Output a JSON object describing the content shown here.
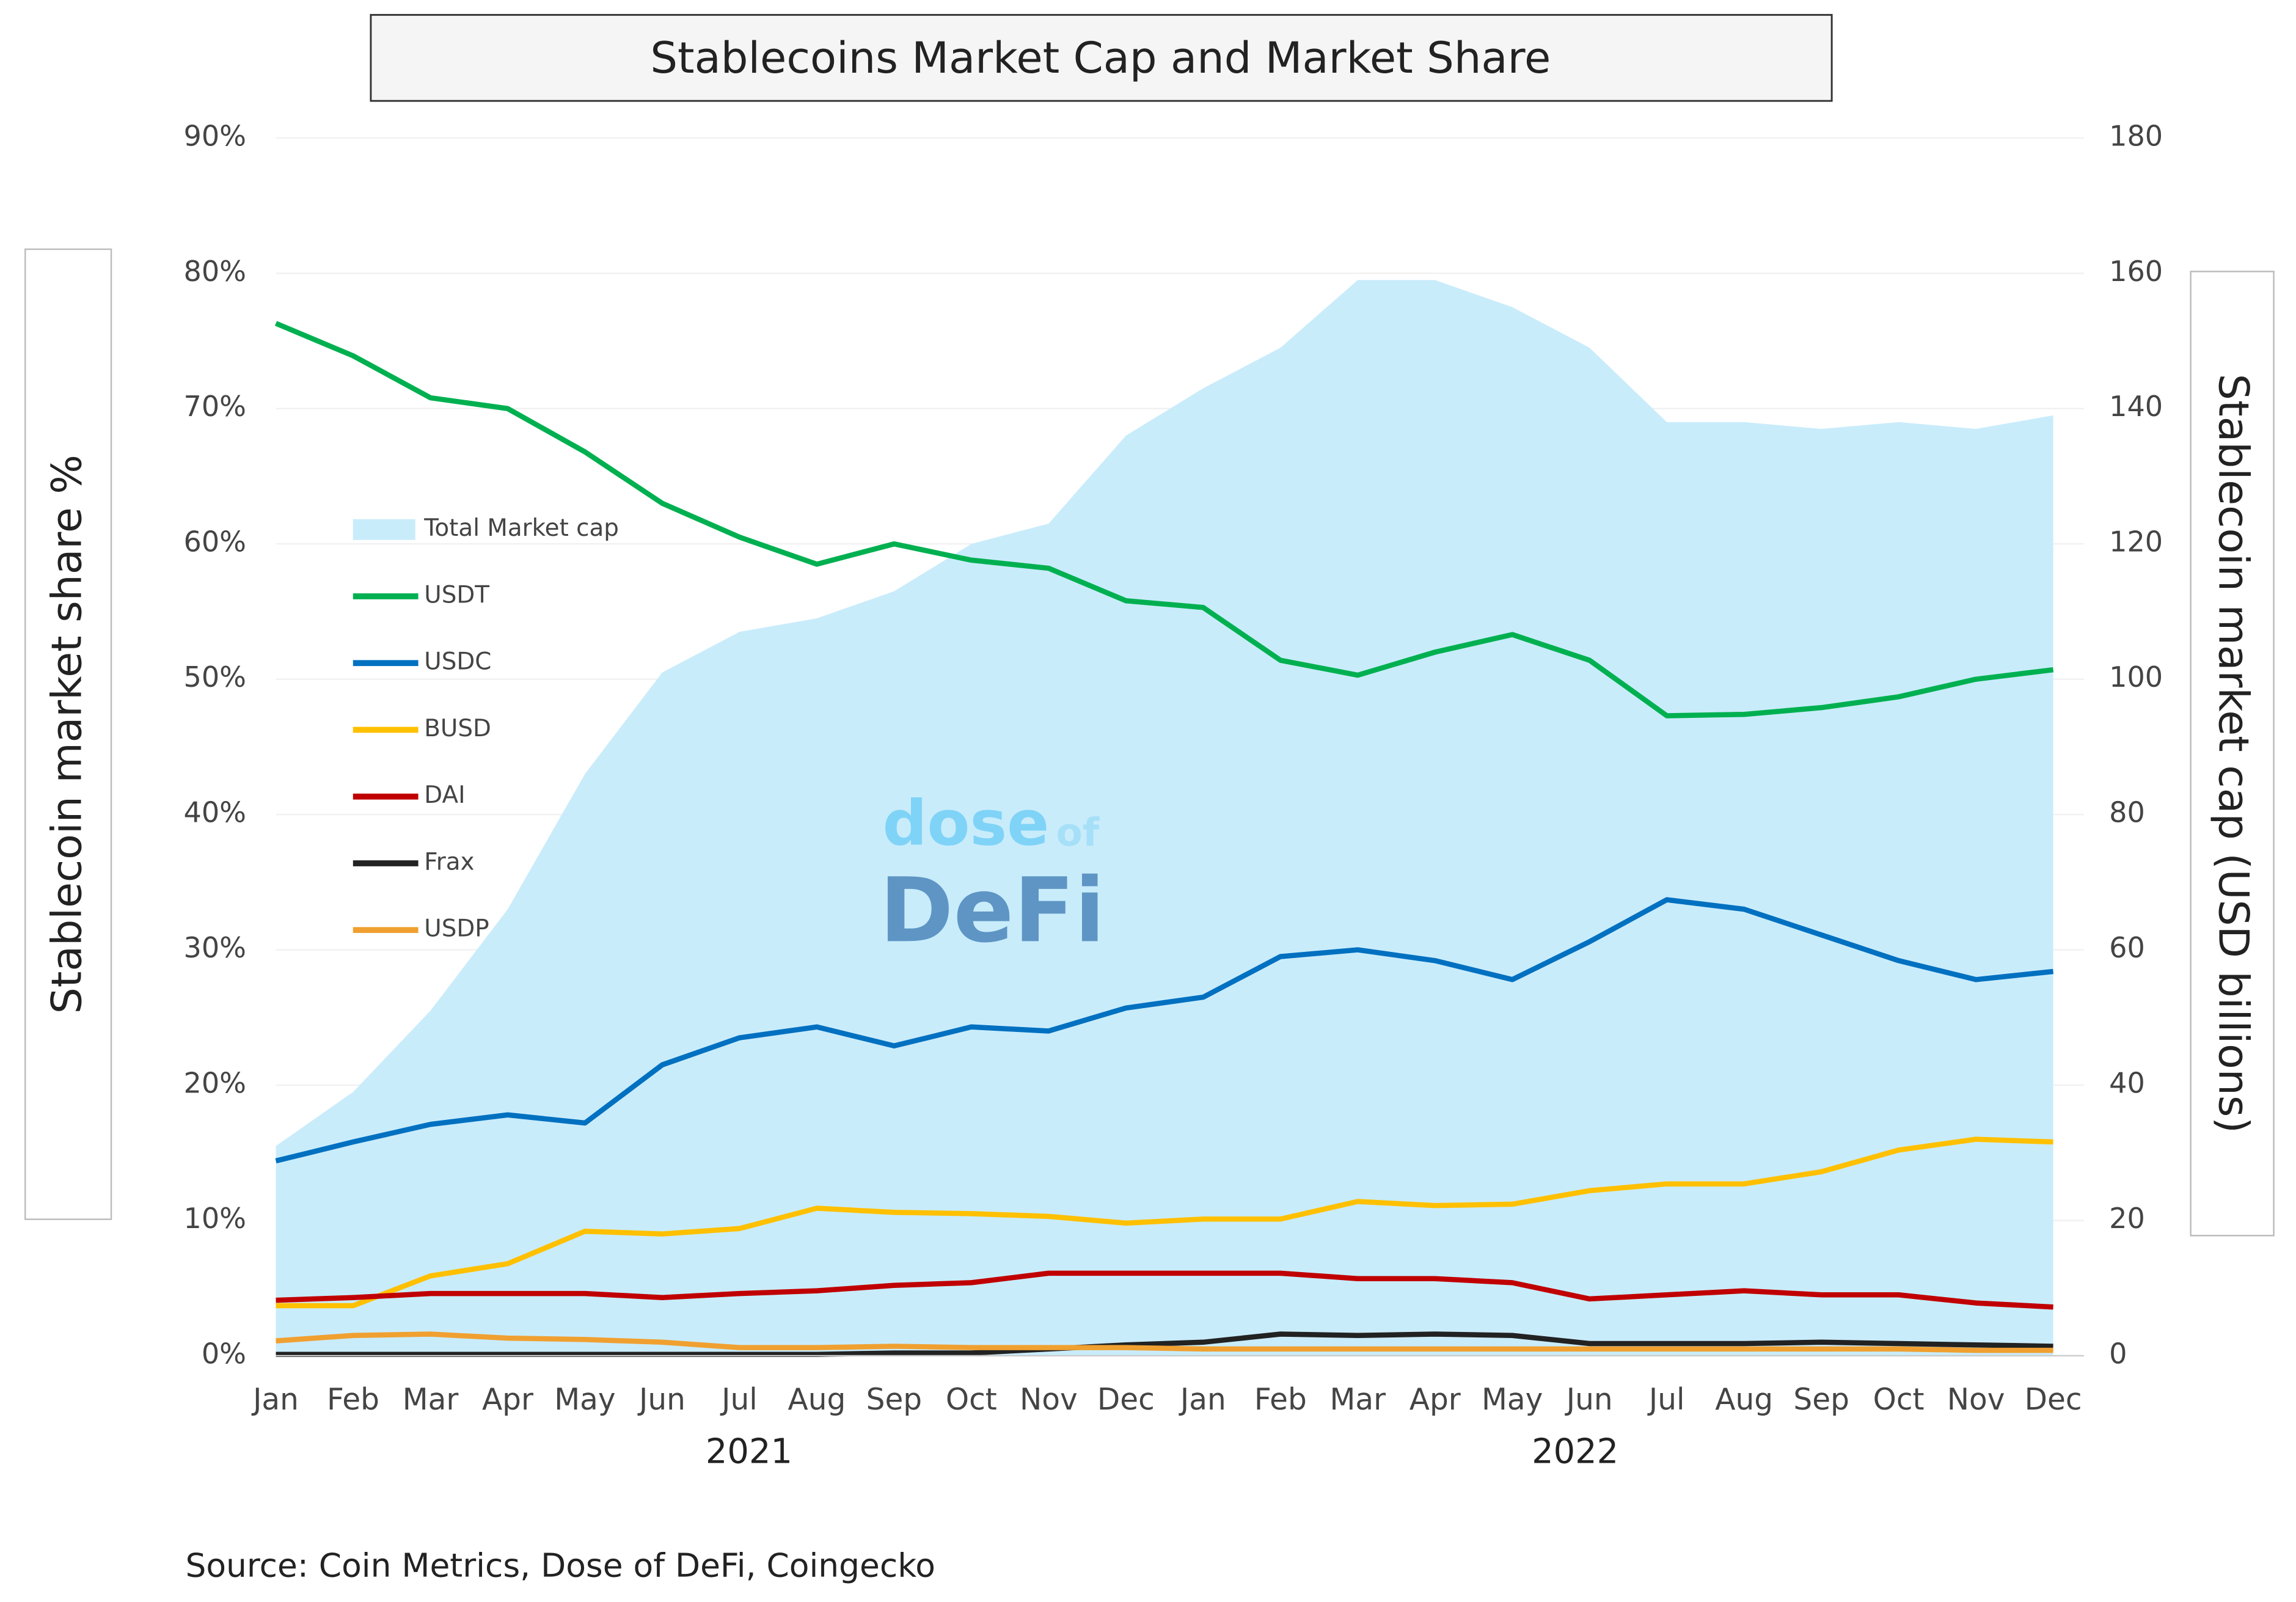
{
  "chart_data": {
    "type": "line",
    "title": "Stablecoins Market Cap and Market Share",
    "ylabel": "Stablecoin market share %",
    "y2label": "Stablecoin market cap (USD billions)",
    "source": "Source: Coin Metrics, Dose of DeFi, Coingecko",
    "watermark": [
      "dose",
      "of",
      "DeFi"
    ],
    "categories": [
      "Jan",
      "Feb",
      "Mar",
      "Apr",
      "May",
      "Jun",
      "Jul",
      "Aug",
      "Sep",
      "Oct",
      "Nov",
      "Dec",
      "Jan",
      "Feb",
      "Mar",
      "Apr",
      "May",
      "Jun",
      "Jul",
      "Aug",
      "Sep",
      "Oct",
      "Nov",
      "Dec"
    ],
    "x_groups": [
      "2021",
      "2022"
    ],
    "ylim": [
      0,
      90
    ],
    "yticks": [
      {
        "value": 0,
        "label": "0%"
      },
      {
        "value": 10,
        "label": "10%"
      },
      {
        "value": 20,
        "label": "20%"
      },
      {
        "value": 30,
        "label": "30%"
      },
      {
        "value": 40,
        "label": "40%"
      },
      {
        "value": 50,
        "label": "50%"
      },
      {
        "value": 60,
        "label": "60%"
      },
      {
        "value": 70,
        "label": "70%"
      },
      {
        "value": 80,
        "label": "80%"
      },
      {
        "value": 90,
        "label": "90%"
      }
    ],
    "y2lim": [
      0,
      180
    ],
    "y2ticks": [
      0,
      20,
      40,
      60,
      80,
      100,
      120,
      140,
      160,
      180
    ],
    "grid": true,
    "series": [
      {
        "name": "Total Market cap",
        "kind": "area",
        "axis": "y2",
        "color": "#c9ecfb",
        "values": [
          31,
          39,
          51,
          66,
          86,
          101,
          107,
          109,
          113,
          120,
          123,
          136,
          143,
          149,
          159,
          159,
          155,
          149,
          138,
          138,
          137,
          138,
          137,
          139
        ]
      },
      {
        "name": "USDT",
        "color": "#00b050",
        "values": [
          76.3,
          73.9,
          70.8,
          70,
          66.8,
          63,
          60.5,
          58.5,
          60,
          58.8,
          58.2,
          55.8,
          55.3,
          51.4,
          50.3,
          52,
          53.3,
          51.4,
          47.3,
          47.4,
          47.9,
          48.7,
          50,
          50.7
        ]
      },
      {
        "name": "USDC",
        "color": "#0070c0",
        "values": [
          14.4,
          15.8,
          17.1,
          17.8,
          17.2,
          21.5,
          23.5,
          24.3,
          22.9,
          24.3,
          24,
          25.7,
          26.5,
          29.5,
          30,
          29.2,
          27.8,
          30.6,
          33.7,
          33,
          31.1,
          29.2,
          27.8,
          28.4
        ]
      },
      {
        "name": "BUSD",
        "color": "#ffc000",
        "values": [
          3.7,
          3.7,
          5.9,
          6.8,
          9.2,
          9,
          9.4,
          10.9,
          10.6,
          10.5,
          10.3,
          9.8,
          10.1,
          10.1,
          11.4,
          11.1,
          11.2,
          12.2,
          12.7,
          12.7,
          13.6,
          15.2,
          16,
          15.8
        ]
      },
      {
        "name": "DAI",
        "color": "#c00000",
        "values": [
          4.1,
          4.3,
          4.6,
          4.6,
          4.6,
          4.3,
          4.6,
          4.8,
          5.2,
          5.4,
          6.1,
          6.1,
          6.1,
          6.1,
          5.7,
          5.7,
          5.4,
          4.2,
          4.5,
          4.8,
          4.5,
          4.5,
          3.9,
          3.6
        ]
      },
      {
        "name": "Frax",
        "color": "#222222",
        "values": [
          0.1,
          0.1,
          0.1,
          0.1,
          0.1,
          0.1,
          0.1,
          0.1,
          0.2,
          0.2,
          0.5,
          0.8,
          1,
          1.6,
          1.5,
          1.6,
          1.5,
          0.9,
          0.9,
          0.9,
          1,
          0.9,
          0.8,
          0.7
        ]
      },
      {
        "name": "USDP",
        "color": "#f0a030",
        "values": [
          1.1,
          1.5,
          1.6,
          1.3,
          1.2,
          1,
          0.6,
          0.6,
          0.7,
          0.6,
          0.6,
          0.6,
          0.5,
          0.5,
          0.5,
          0.5,
          0.5,
          0.5,
          0.5,
          0.5,
          0.5,
          0.5,
          0.4,
          0.4
        ]
      }
    ]
  }
}
